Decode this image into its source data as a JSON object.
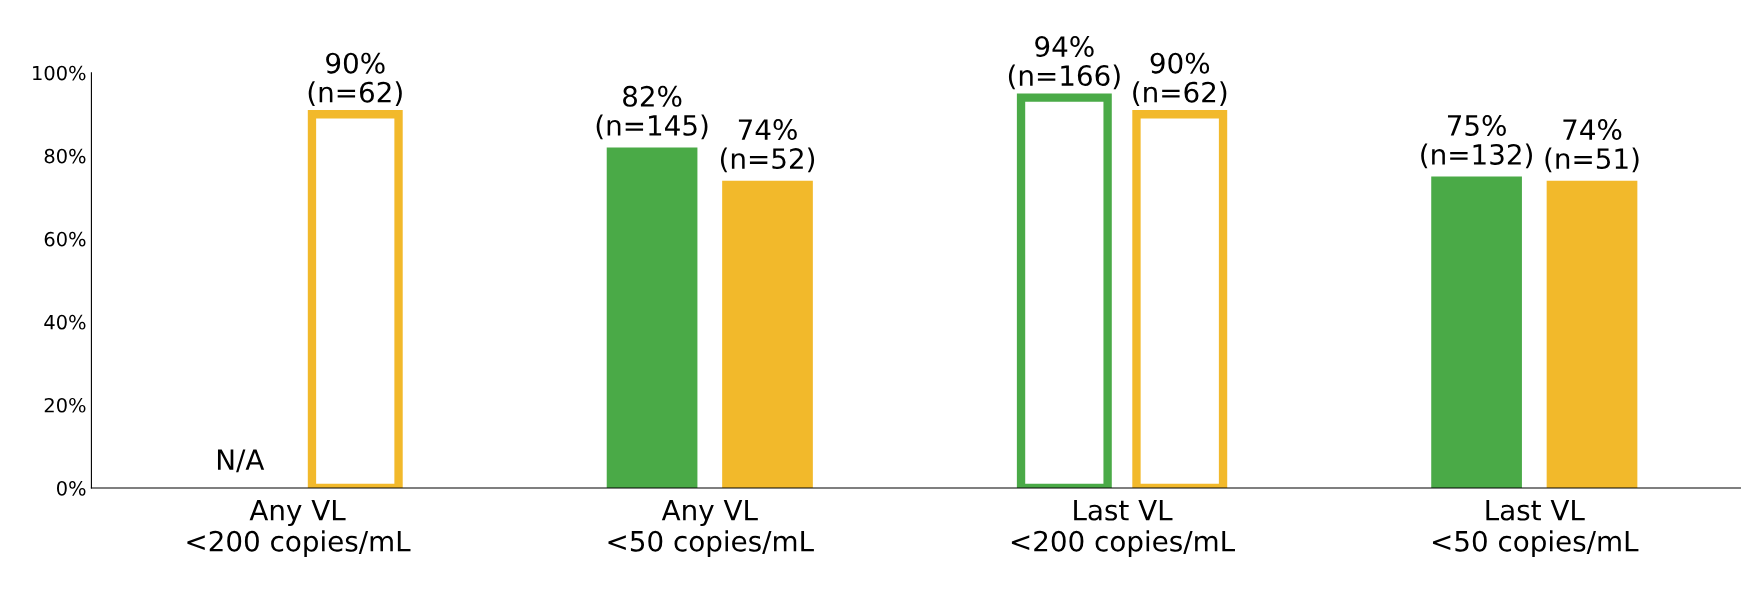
{
  "chart_data": {
    "type": "bar",
    "categories": [
      "Any VL\n<200 copies/mL",
      "Any VL\n<50 copies/mL",
      "Last VL\n<200 copies/mL",
      "Last VL\n<50 copies/mL"
    ],
    "series": [
      {
        "color": "#4aaa47",
        "values": [
          null,
          82,
          94,
          75
        ],
        "value_labels": [
          "N/A",
          "82%\n(n=145)",
          "94%\n(n=166)",
          "75%\n(n=132)"
        ],
        "colors": [
          "#4aaa47",
          "#4aaa47",
          "#ffffff",
          "#4aaa47"
        ]
      },
      {
        "color": "#f2b92b",
        "values": [
          90,
          74,
          90,
          74
        ],
        "value_labels": [
          "90%\n(n=62)",
          "74%\n(n=52)",
          "90%\n(n=62)",
          "74%\n(n=51)"
        ],
        "colors": [
          "#ffffff",
          "#f2b92b",
          "#ffffff",
          "#f2b92b"
        ]
      }
    ],
    "ylim": [
      0,
      100
    ],
    "yticks": [
      {
        "value": 0,
        "label": "0%"
      },
      {
        "value": 20,
        "label": "20%"
      },
      {
        "value": 40,
        "label": "40%"
      },
      {
        "value": 60,
        "label": "60%"
      },
      {
        "value": 80,
        "label": "80%"
      },
      {
        "value": 100,
        "label": "100%"
      }
    ],
    "grid": false,
    "legend": false
  }
}
